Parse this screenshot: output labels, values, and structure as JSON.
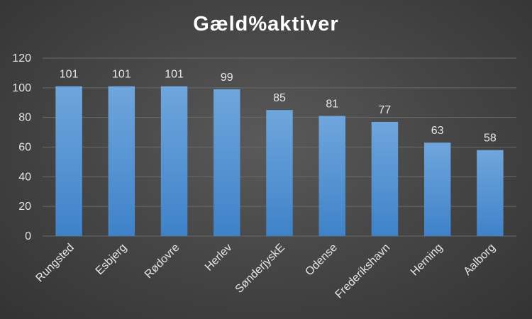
{
  "chart_data": {
    "type": "bar",
    "title": "Gæld%aktiver",
    "categories": [
      "Rungsted",
      "Esbjerg",
      "Rødovre",
      "Herlev",
      "SønderjyskE",
      "Odense",
      "Frederikshavn",
      "Herning",
      "Aalborg"
    ],
    "values": [
      101,
      101,
      101,
      99,
      85,
      81,
      77,
      63,
      58
    ],
    "data_labels": [
      "101",
      "101",
      "101",
      "99",
      "85",
      "81",
      "77",
      "63",
      "58"
    ],
    "y_ticks": [
      "0",
      "20",
      "40",
      "60",
      "80",
      "100",
      "120"
    ],
    "ylim": [
      0,
      120
    ],
    "xlabel": "",
    "ylabel": "",
    "grid": true,
    "legend": "none",
    "colors": {
      "bar_top": "#6fa6dc",
      "bar_bottom": "#3f82c9",
      "grid": "#6a6a6a",
      "text": "#e6e6e6",
      "background_center": "#5a5a5a",
      "background_edge": "#333333"
    }
  }
}
